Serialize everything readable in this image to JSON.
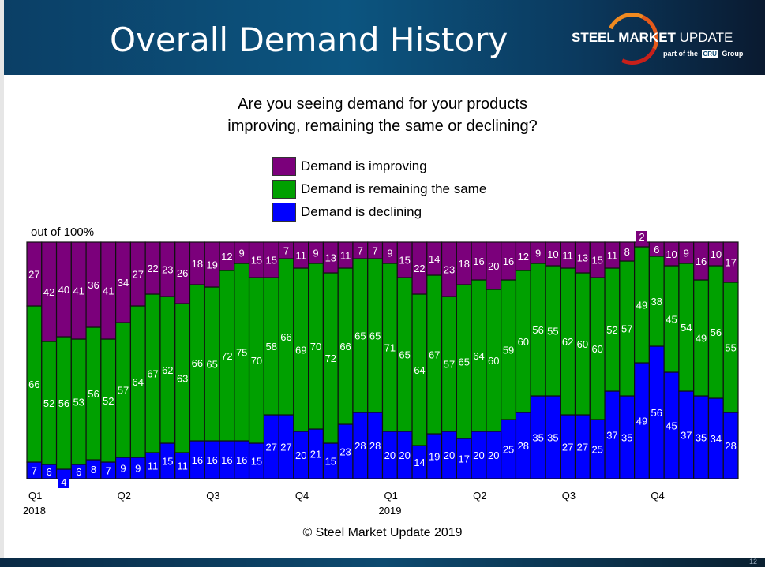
{
  "header": {
    "title": "Overall Demand History",
    "logo_text_bold": "STEEL MARKET",
    "logo_text_light": "UPDATE",
    "logo_sub_prefix": "part of the",
    "logo_sub_brand": "CRU",
    "logo_sub_suffix": "Group"
  },
  "copyright": "© Steel Market Update 2019",
  "page_number": "12",
  "chart_data": {
    "type": "bar",
    "stacked": true,
    "title": "Are you seeing demand for your products improving, remaining the same or declining?",
    "ylabel": "out of 100%",
    "ylim": [
      0,
      100
    ],
    "legend_placement": "top-center",
    "x_tick_labels": [
      {
        "index": 0,
        "label": "Q1",
        "year": "2018"
      },
      {
        "index": 6,
        "label": "Q2"
      },
      {
        "index": 12,
        "label": "Q3"
      },
      {
        "index": 18,
        "label": "Q4"
      },
      {
        "index": 24,
        "label": "Q1",
        "year": "2019"
      },
      {
        "index": 30,
        "label": "Q2"
      },
      {
        "index": 36,
        "label": "Q3"
      },
      {
        "index": 42,
        "label": "Q4"
      }
    ],
    "series": [
      {
        "name": "Demand is declining",
        "color": "#0000ff",
        "values": [
          7,
          6,
          4,
          6,
          8,
          7,
          9,
          9,
          11,
          15,
          11,
          16,
          16,
          16,
          16,
          15,
          27,
          27,
          20,
          21,
          15,
          23,
          28,
          28,
          20,
          20,
          14,
          19,
          20,
          17,
          20,
          20,
          25,
          28,
          35,
          35,
          27,
          27,
          25,
          37,
          35,
          49,
          56,
          45,
          37,
          35,
          34,
          28
        ]
      },
      {
        "name": "Demand is remaining the same",
        "color": "#00a000",
        "values": [
          66,
          52,
          56,
          53,
          56,
          52,
          57,
          64,
          67,
          62,
          63,
          66,
          65,
          72,
          75,
          70,
          58,
          66,
          69,
          70,
          72,
          66,
          65,
          65,
          71,
          65,
          64,
          67,
          57,
          65,
          64,
          60,
          59,
          60,
          56,
          55,
          62,
          60,
          60,
          52,
          57,
          49,
          38,
          45,
          54,
          49,
          56,
          55
        ]
      },
      {
        "name": "Demand is improving",
        "color": "#7b007b",
        "values": [
          27,
          42,
          40,
          41,
          36,
          41,
          34,
          27,
          22,
          23,
          26,
          18,
          19,
          12,
          9,
          15,
          15,
          7,
          11,
          9,
          13,
          11,
          7,
          7,
          9,
          15,
          22,
          14,
          23,
          18,
          16,
          20,
          16,
          12,
          9,
          10,
          11,
          13,
          15,
          11,
          8,
          2,
          6,
          10,
          9,
          16,
          10,
          17
        ]
      }
    ]
  }
}
